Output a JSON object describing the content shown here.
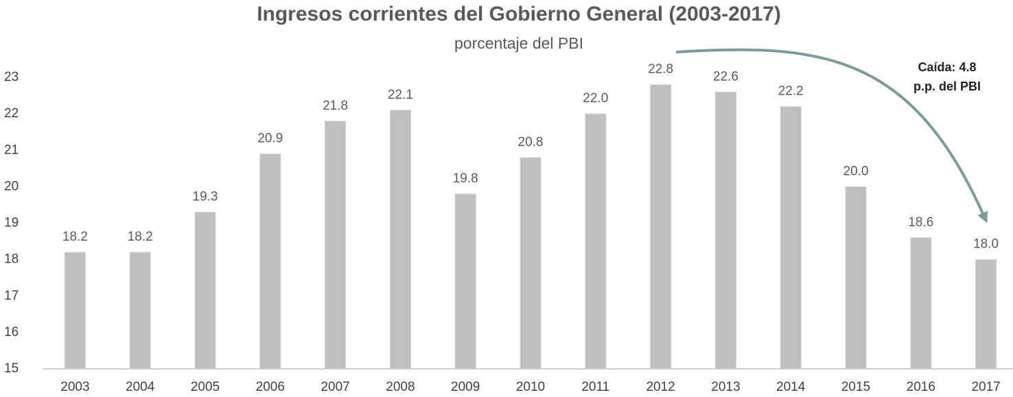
{
  "chart_data": {
    "type": "bar",
    "title": "Ingresos corrientes del Gobierno General (2003-2017)",
    "subtitle": "porcentaje del PBI",
    "annotation": [
      "Caída: 4.8",
      "p.p. del PBI"
    ],
    "categories": [
      "2003",
      "2004",
      "2005",
      "2006",
      "2007",
      "2008",
      "2009",
      "2010",
      "2011",
      "2012",
      "2013",
      "2014",
      "2015",
      "2016",
      "2017"
    ],
    "values": [
      18.2,
      18.2,
      19.3,
      20.9,
      21.8,
      22.1,
      19.8,
      20.8,
      22.0,
      22.8,
      22.6,
      22.2,
      20.0,
      18.6,
      18.0
    ],
    "value_labels": [
      "18.2",
      "18.2",
      "19.3",
      "20.9",
      "21.8",
      "22.1",
      "19.8",
      "20.8",
      "22.0",
      "22.8",
      "22.6",
      "22.2",
      "20.0",
      "18.6",
      "18.0"
    ],
    "color": "#bfbfbf",
    "ylim": [
      15,
      23
    ],
    "yticks": [
      15,
      16,
      17,
      18,
      19,
      20,
      21,
      22,
      23
    ],
    "grid": false
  }
}
